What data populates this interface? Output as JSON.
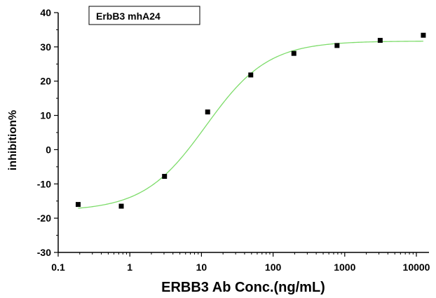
{
  "chart_data": {
    "type": "scatter",
    "title": "",
    "xlabel": "ERBB3 Ab Conc.(ng/mL)",
    "ylabel": "inhibition%",
    "x_scale": "log",
    "xlim": [
      0.1,
      15000
    ],
    "ylim": [
      -30,
      40
    ],
    "x_ticks": [
      0.1,
      1,
      10,
      100,
      1000,
      10000
    ],
    "x_tick_labels": [
      "0.1",
      "1",
      "10",
      "100",
      "1000",
      "10000"
    ],
    "y_ticks": [
      -30,
      -20,
      -10,
      0,
      10,
      20,
      30,
      40
    ],
    "y_tick_labels": [
      "-30",
      "-20",
      "-10",
      "0",
      "10",
      "20",
      "30",
      "40"
    ],
    "grid": false,
    "legend": {
      "position": "top-left",
      "entries": [
        "ErbB3 mhA24"
      ]
    },
    "series": [
      {
        "name": "ErbB3 mhA24",
        "marker": "square",
        "color": "#000000",
        "x": [
          0.19,
          0.76,
          3.05,
          12.2,
          48.8,
          195,
          781,
          3125,
          12500
        ],
        "y": [
          -16.0,
          -16.5,
          -7.8,
          11.0,
          21.8,
          28.1,
          30.4,
          31.9,
          33.4
        ]
      }
    ],
    "fit_curve": {
      "color": "#7ddc6a",
      "model": "4PL",
      "bottom": -17.9,
      "top": 31.7,
      "ec50": 11.5,
      "hill": 1.0,
      "x_range": [
        0.19,
        12500
      ]
    }
  }
}
